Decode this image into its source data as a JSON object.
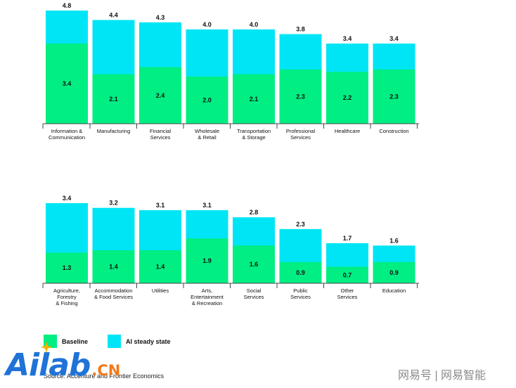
{
  "colors": {
    "baseline": "#00ee82",
    "ai": "#00e5f5",
    "axis": "#444444"
  },
  "legend": {
    "baseline": "Baseline",
    "ai": "AI steady state"
  },
  "source": "Source: Accenture and Frontier Economics",
  "logo": {
    "main": "Ailab",
    "suffix": ".CN"
  },
  "watermark": "网易号 | 网易智能",
  "chart_data": [
    {
      "type": "bar",
      "stacked_overlay": true,
      "ylim": [
        0,
        4.8
      ],
      "categories": [
        [
          "Information &",
          "Communication"
        ],
        [
          "Manufacturing"
        ],
        [
          "Financial",
          "Services"
        ],
        [
          "Wholesale",
          "& Retail"
        ],
        [
          "Transportation",
          "& Storage"
        ],
        [
          "Professional",
          "Services"
        ],
        [
          "Healthcare"
        ],
        [
          "Construction"
        ]
      ],
      "series": [
        {
          "name": "Baseline",
          "values": [
            3.4,
            2.1,
            2.4,
            2.0,
            2.1,
            2.3,
            2.2,
            2.3
          ]
        },
        {
          "name": "AI steady state",
          "values": [
            4.8,
            4.4,
            4.3,
            4.0,
            4.0,
            3.8,
            3.4,
            3.4
          ]
        }
      ]
    },
    {
      "type": "bar",
      "stacked_overlay": true,
      "ylim": [
        0,
        3.4
      ],
      "categories": [
        [
          "Agriculture,",
          "Forestry",
          "& Fishing"
        ],
        [
          "Accommodation",
          "& Food Services"
        ],
        [
          "Utilities"
        ],
        [
          "Arts,",
          "Entertainment",
          "& Recreation"
        ],
        [
          "Social",
          "Services"
        ],
        [
          "Public",
          "Services"
        ],
        [
          "Other",
          "Services"
        ],
        [
          "Education"
        ]
      ],
      "series": [
        {
          "name": "Baseline",
          "values": [
            1.3,
            1.4,
            1.4,
            1.9,
            1.6,
            0.9,
            0.7,
            0.9
          ]
        },
        {
          "name": "AI steady state",
          "values": [
            3.4,
            3.2,
            3.1,
            3.1,
            2.8,
            2.3,
            1.7,
            1.6
          ]
        }
      ]
    }
  ]
}
